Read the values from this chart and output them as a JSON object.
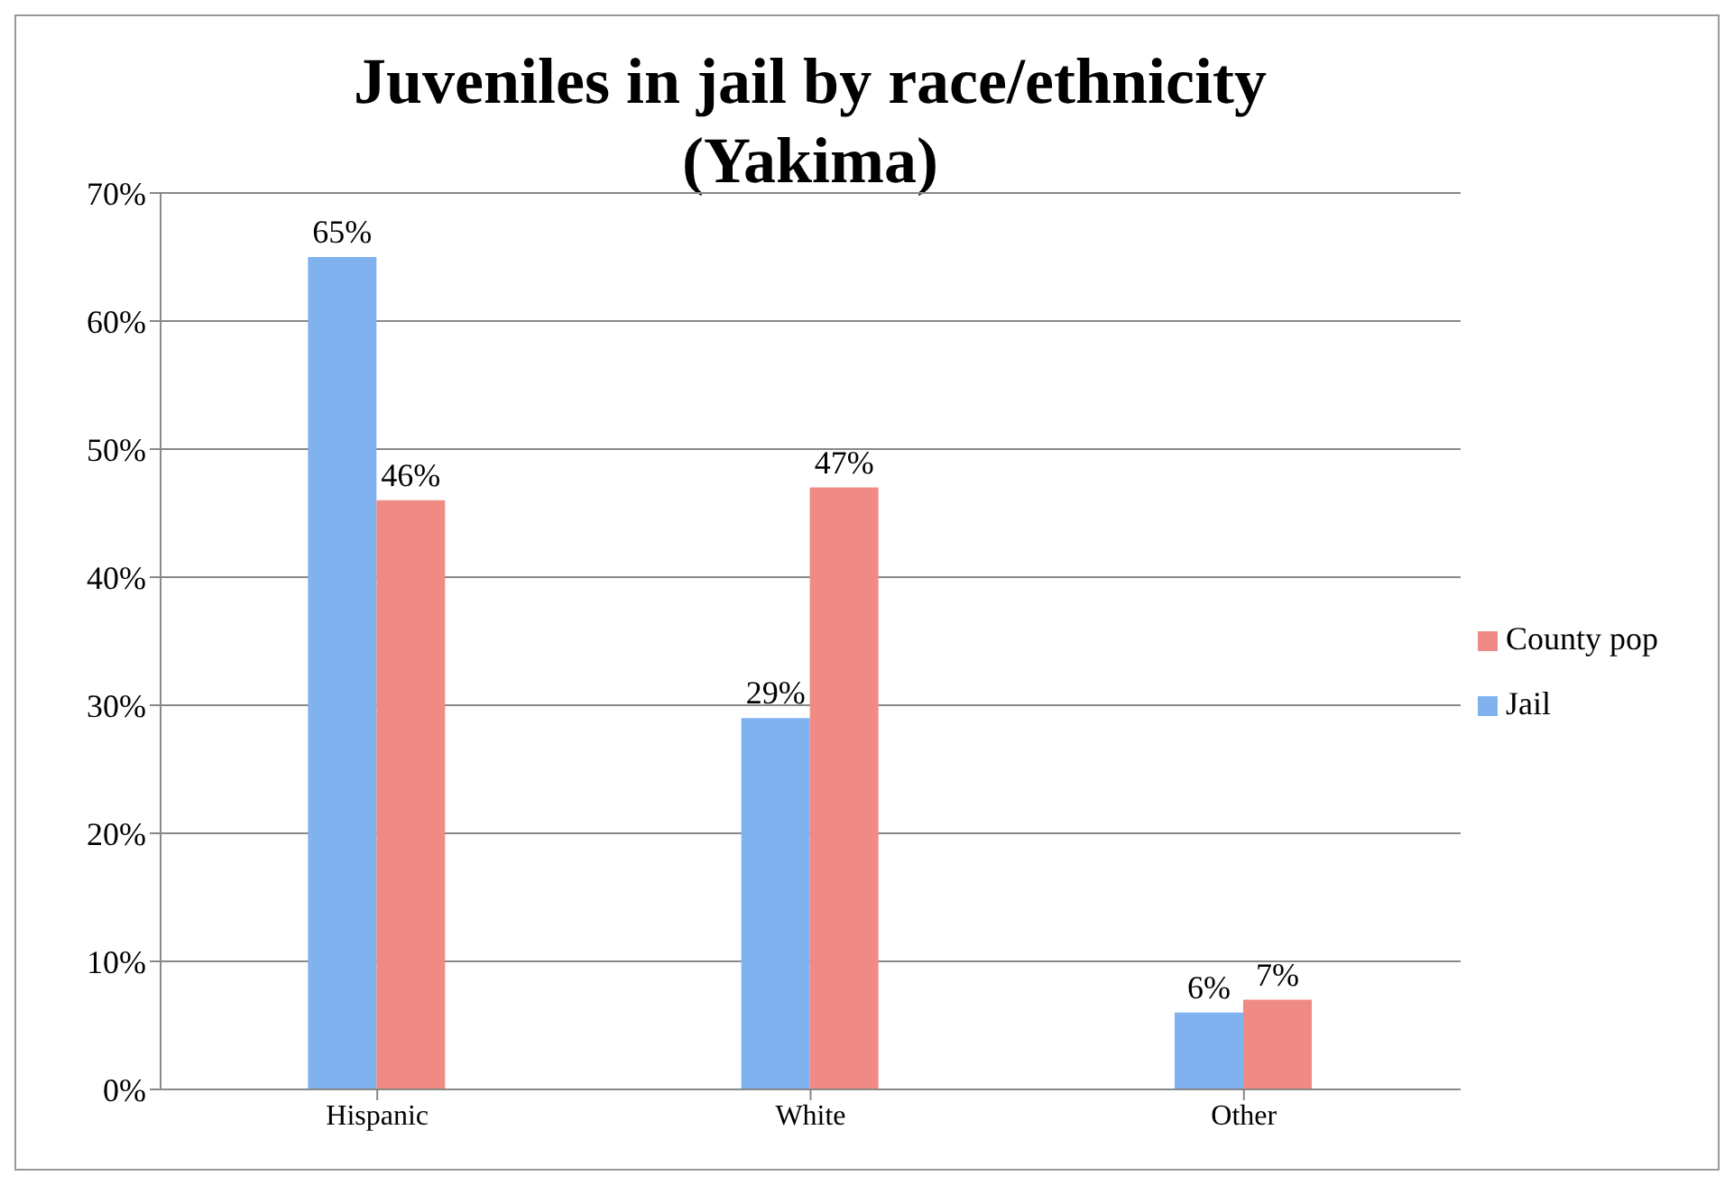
{
  "chart_data": {
    "type": "bar",
    "title": "Juveniles in jail by race/ethnicity (Yakima)",
    "categories": [
      "Hispanic",
      "White",
      "Other"
    ],
    "series": [
      {
        "name": "Jail",
        "color": "#7fb2ee",
        "values": [
          65,
          29,
          6
        ],
        "value_labels": [
          "65%",
          "29%",
          "6%"
        ]
      },
      {
        "name": "County pop",
        "color": "#f08a84",
        "values": [
          46,
          47,
          7
        ],
        "value_labels": [
          "46%",
          "47%",
          "7%"
        ]
      }
    ],
    "ylim": [
      0,
      70
    ],
    "yticks": [
      {
        "value": 0,
        "label": "0%"
      },
      {
        "value": 10,
        "label": "10%"
      },
      {
        "value": 20,
        "label": "20%"
      },
      {
        "value": 30,
        "label": "30%"
      },
      {
        "value": 40,
        "label": "40%"
      },
      {
        "value": 50,
        "label": "50%"
      },
      {
        "value": 60,
        "label": "60%"
      },
      {
        "value": 70,
        "label": "70%"
      }
    ],
    "grid": "y",
    "legend": "right"
  }
}
